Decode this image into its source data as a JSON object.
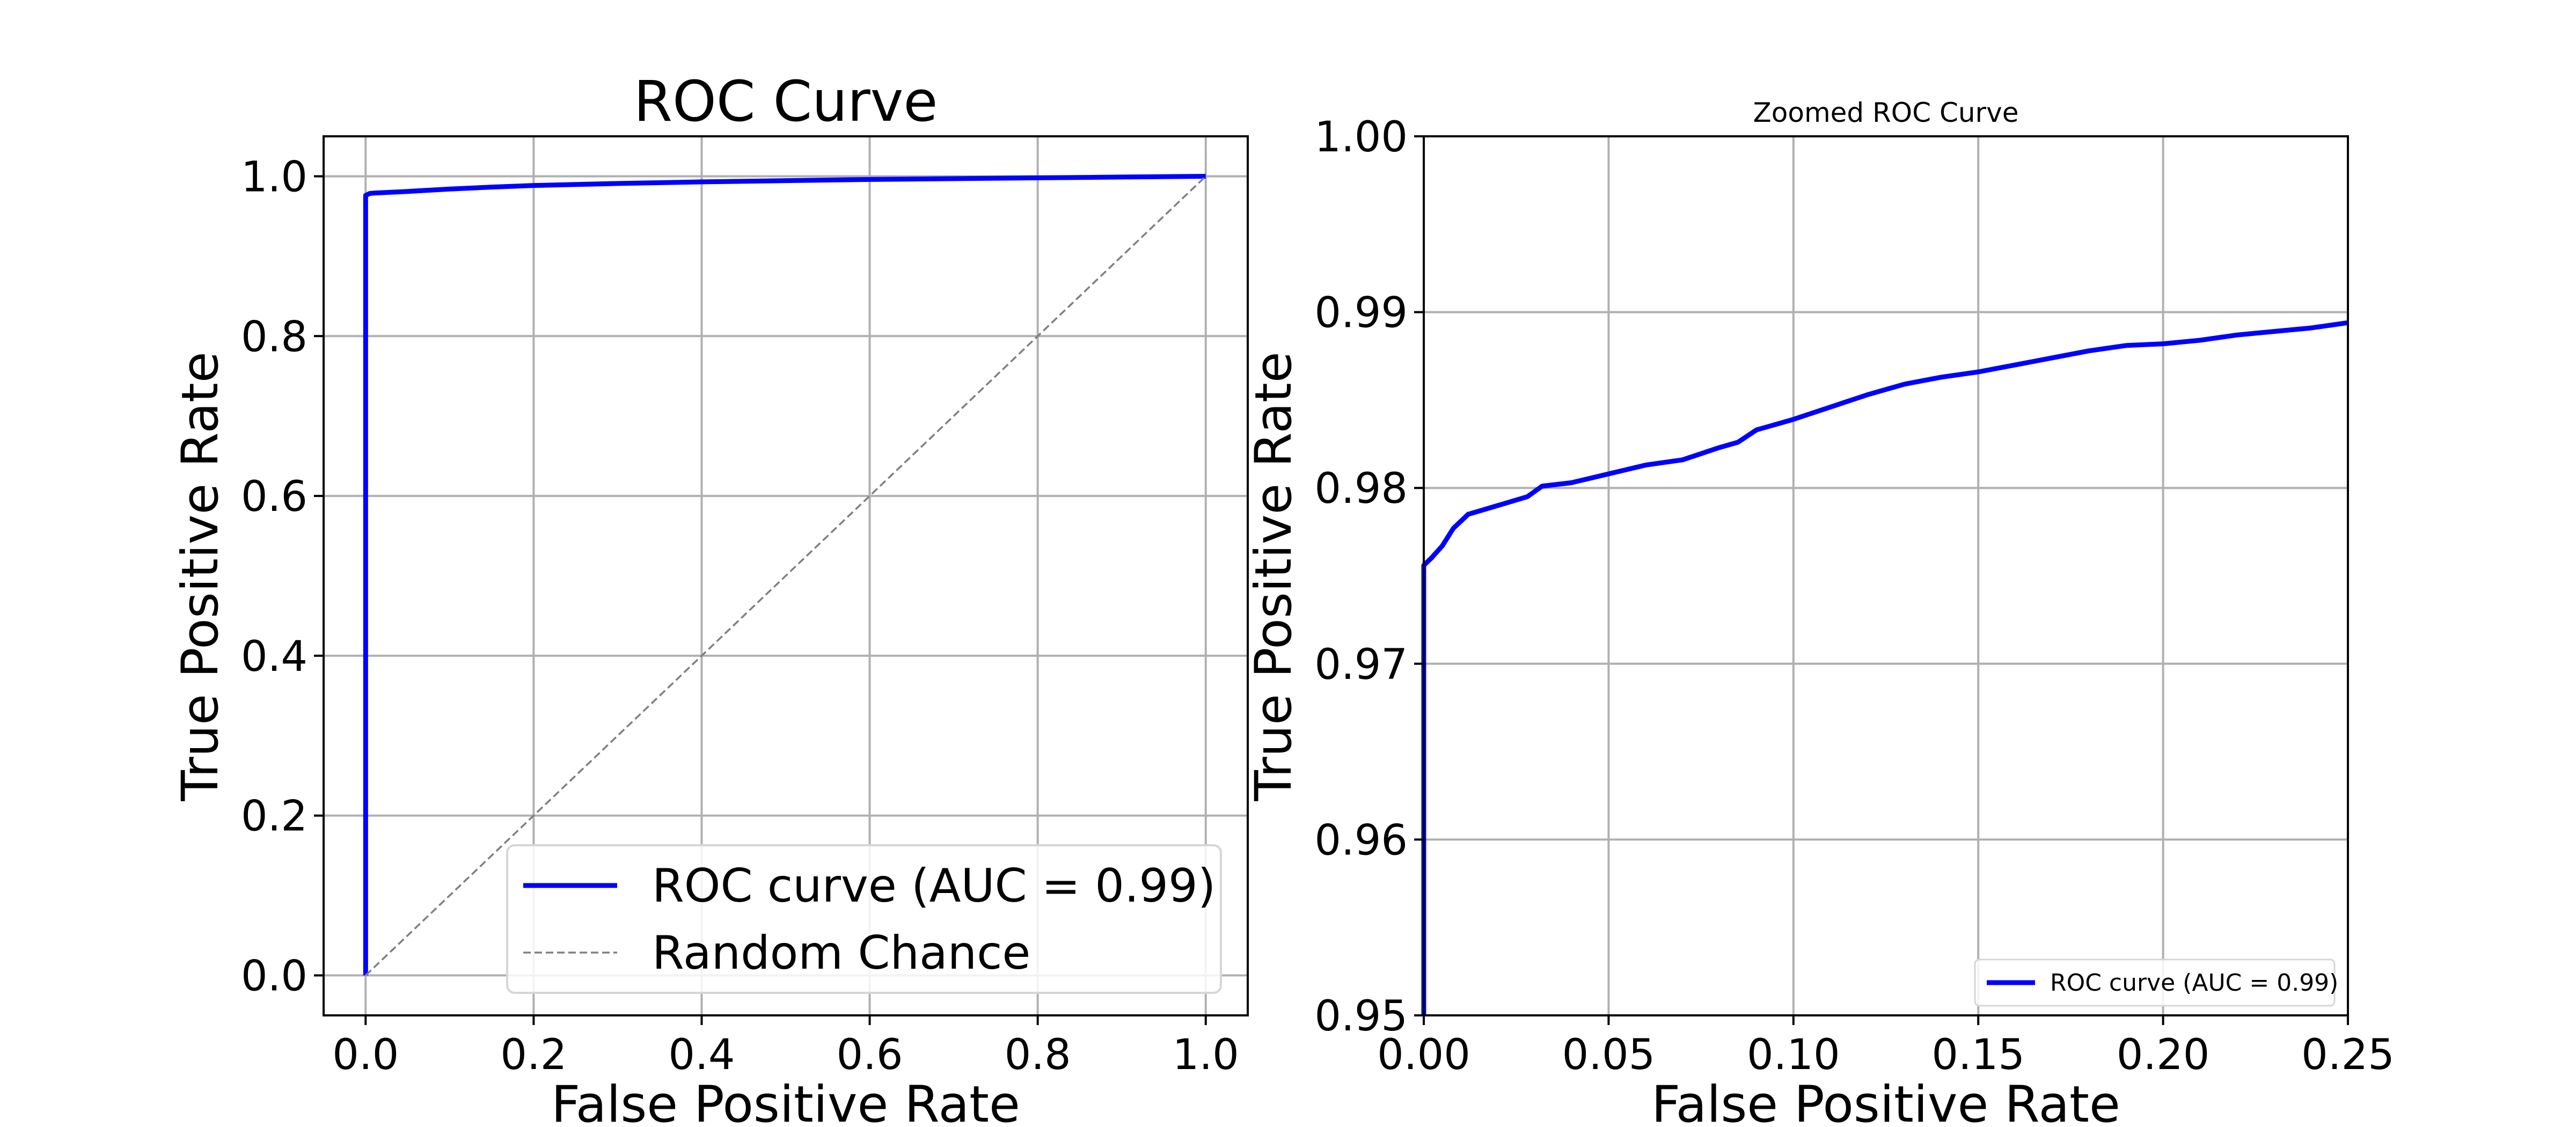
{
  "chart_data": [
    {
      "type": "line",
      "title": "ROC Curve",
      "xlabel": "False Positive Rate",
      "ylabel": "True Positive Rate",
      "xlim": [
        -0.05,
        1.05
      ],
      "ylim": [
        -0.05,
        1.05
      ],
      "xticks": [
        "0.0",
        "0.2",
        "0.4",
        "0.6",
        "0.8",
        "1.0"
      ],
      "xtick_values": [
        0.0,
        0.2,
        0.4,
        0.6,
        0.8,
        1.0
      ],
      "yticks": [
        "0.0",
        "0.2",
        "0.4",
        "0.6",
        "0.8",
        "1.0"
      ],
      "ytick_values": [
        0.0,
        0.2,
        0.4,
        0.6,
        0.8,
        1.0
      ],
      "grid": true,
      "legend_position": "lower-right",
      "series": [
        {
          "name": "ROC curve (AUC = 0.99)",
          "color": "#0000ff",
          "style": "solid",
          "x": [
            0.0,
            0.0,
            0.0,
            0.005,
            0.01,
            0.03,
            0.05,
            0.1,
            0.15,
            0.2,
            0.3,
            0.4,
            0.5,
            0.6,
            0.7,
            0.8,
            0.9,
            1.0
          ],
          "y": [
            0.0,
            0.975,
            0.976,
            0.9785,
            0.979,
            0.98,
            0.981,
            0.984,
            0.9865,
            0.9885,
            0.991,
            0.993,
            0.9945,
            0.996,
            0.997,
            0.998,
            0.999,
            1.0
          ]
        },
        {
          "name": "Random Chance",
          "color": "#808080",
          "style": "dashed",
          "x": [
            0.0,
            1.0
          ],
          "y": [
            0.0,
            1.0
          ]
        }
      ]
    },
    {
      "type": "line",
      "title": "Zoomed ROC Curve",
      "xlabel": "False Positive Rate",
      "ylabel": "True Positive Rate",
      "xlim": [
        0.0,
        0.25
      ],
      "ylim": [
        0.95,
        1.0
      ],
      "xticks": [
        "0.00",
        "0.05",
        "0.10",
        "0.15",
        "0.20",
        "0.25"
      ],
      "xtick_values": [
        0.0,
        0.05,
        0.1,
        0.15,
        0.2,
        0.25
      ],
      "yticks": [
        "0.95",
        "0.96",
        "0.97",
        "0.98",
        "0.99",
        "1.00"
      ],
      "ytick_values": [
        0.95,
        0.96,
        0.97,
        0.98,
        0.99,
        1.0
      ],
      "grid": true,
      "legend_position": "lower-right",
      "series": [
        {
          "name": "ROC curve (AUC = 0.99)",
          "color": "#0000ff",
          "style": "solid",
          "x": [
            0.0,
            0.0,
            0.0,
            0.002,
            0.005,
            0.008,
            0.012,
            0.02,
            0.028,
            0.032,
            0.04,
            0.05,
            0.06,
            0.07,
            0.08,
            0.085,
            0.09,
            0.1,
            0.11,
            0.12,
            0.13,
            0.14,
            0.15,
            0.16,
            0.17,
            0.18,
            0.19,
            0.2,
            0.21,
            0.22,
            0.23,
            0.24,
            0.25
          ],
          "y": [
            0.95,
            0.9752,
            0.9756,
            0.976,
            0.9767,
            0.9777,
            0.9785,
            0.979,
            0.9795,
            0.9801,
            0.9803,
            0.9808,
            0.9813,
            0.9816,
            0.9823,
            0.9826,
            0.9833,
            0.9839,
            0.9846,
            0.9853,
            0.9859,
            0.9863,
            0.9866,
            0.987,
            0.9874,
            0.9878,
            0.9881,
            0.9882,
            0.9884,
            0.9887,
            0.9889,
            0.9891,
            0.9894
          ]
        }
      ]
    }
  ]
}
